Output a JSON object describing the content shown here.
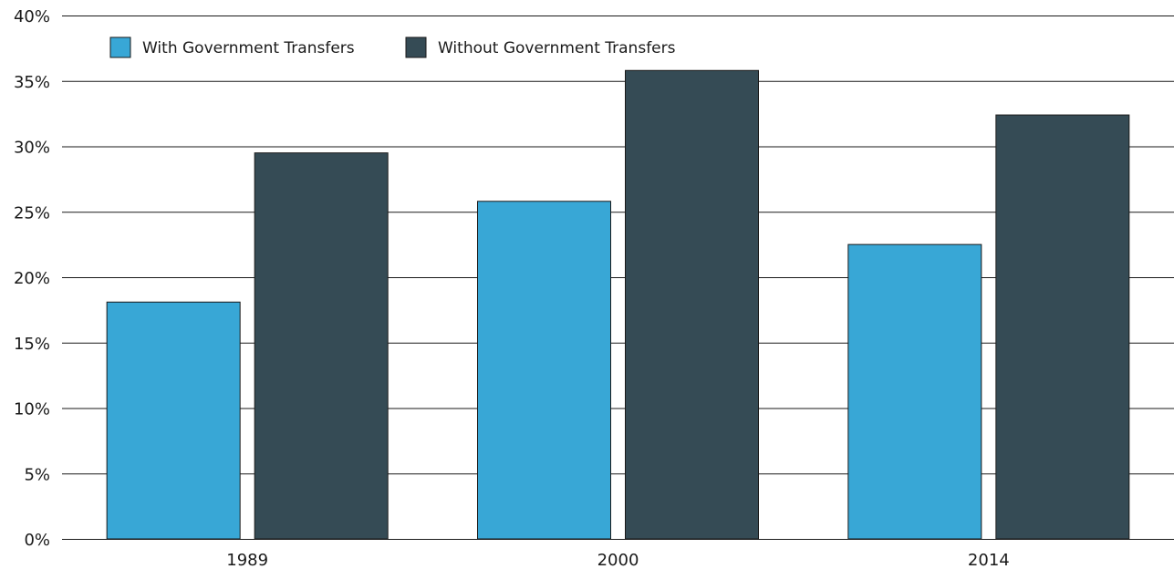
{
  "chart_data": {
    "type": "bar",
    "title": "",
    "xlabel": "",
    "ylabel": "",
    "categories": [
      "1989",
      "2000",
      "2014"
    ],
    "series": [
      {
        "name": "With Government Transfers",
        "color": "#38a7d6",
        "values": [
          18.1,
          25.8,
          22.5
        ]
      },
      {
        "name": "Without Government Transfers",
        "color": "#354b55",
        "values": [
          29.5,
          35.8,
          32.4
        ]
      }
    ],
    "ylim": [
      0,
      40
    ],
    "y_ticks": [
      0,
      5,
      10,
      15,
      20,
      25,
      30,
      35,
      40
    ],
    "y_tick_labels": [
      "0%",
      "5%",
      "10%",
      "15%",
      "20%",
      "25%",
      "30%",
      "35%",
      "40%"
    ],
    "grid": true,
    "legend_position": "top-left"
  }
}
